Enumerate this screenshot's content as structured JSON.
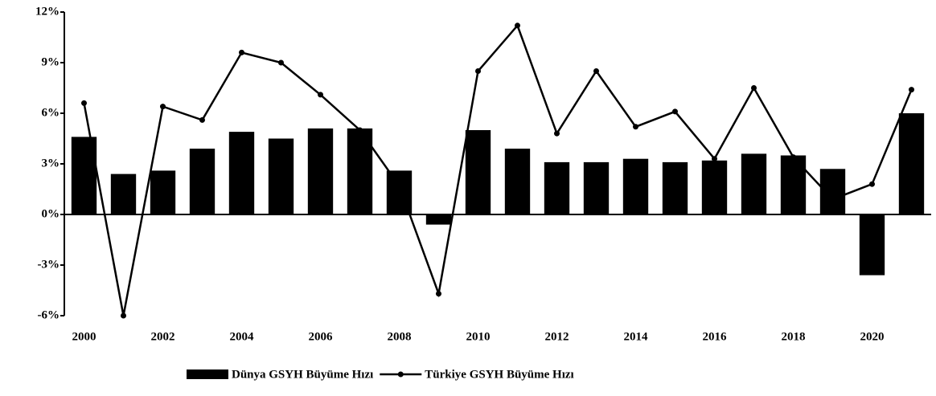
{
  "chart_data": {
    "type": "bar-line",
    "categories": [
      "2000",
      null,
      "2002",
      null,
      "2004",
      null,
      "2006",
      null,
      "2008",
      null,
      "2010",
      null,
      "2012",
      null,
      "2014",
      null,
      "2016",
      null,
      "2018",
      null,
      "2020",
      null
    ],
    "series": [
      {
        "name": "Dünya GSYH Büyüme Hızı",
        "type": "bar",
        "color": "#000000",
        "values": [
          4.6,
          2.4,
          2.6,
          3.9,
          4.9,
          4.5,
          5.1,
          5.1,
          2.6,
          -0.6,
          5.0,
          3.9,
          3.1,
          3.1,
          3.3,
          3.1,
          3.2,
          3.6,
          3.5,
          2.7,
          -3.6,
          6.0
        ]
      },
      {
        "name": "Türkiye GSYH Büyüme Hızı",
        "type": "line",
        "color": "#000000",
        "values": [
          6.6,
          -6.0,
          6.4,
          5.6,
          9.6,
          9.0,
          7.1,
          5.0,
          1.7,
          -4.7,
          8.5,
          11.2,
          4.8,
          8.5,
          5.2,
          6.1,
          3.3,
          7.5,
          3.4,
          0.9,
          1.8,
          7.4
        ]
      }
    ],
    "ylim": [
      -6,
      12
    ],
    "yticks": [
      {
        "value": -6,
        "label": "-6%"
      },
      {
        "value": -3,
        "label": "-3%"
      },
      {
        "value": 0,
        "label": "0%"
      },
      {
        "value": 3,
        "label": "3%"
      },
      {
        "value": 6,
        "label": "6%"
      },
      {
        "value": 9,
        "label": "9%"
      },
      {
        "value": 12,
        "label": "12%"
      }
    ],
    "legend": "bottom"
  }
}
